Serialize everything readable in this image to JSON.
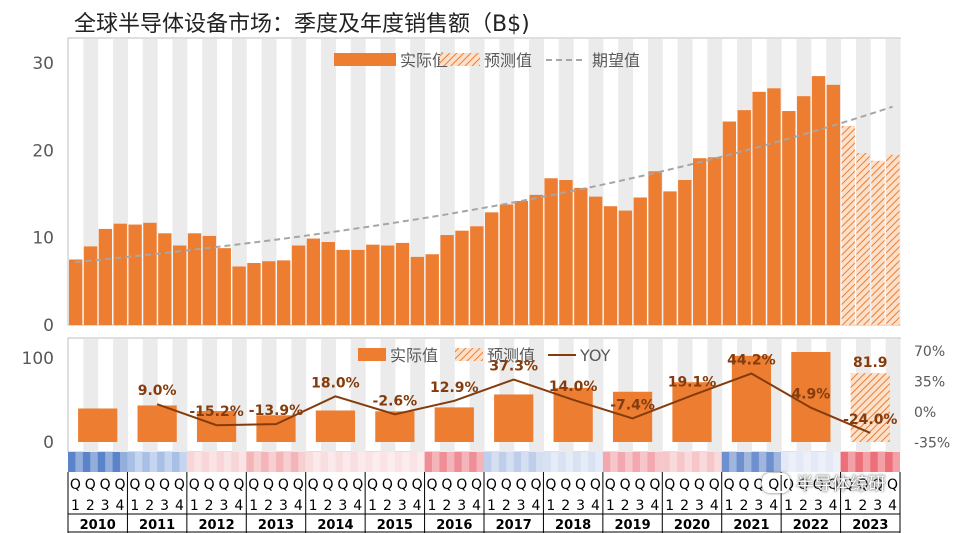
{
  "title": "全球半导体设备市场：季度及年度销售额（B$)",
  "watermark": "半导体综研",
  "colors": {
    "actual": "#ED7D31",
    "forecast": "#F4B183",
    "trend": "#A6A6A6",
    "yoy": "#843C0C",
    "band": "#EBEBEB"
  },
  "chart_data": [
    {
      "type": "bar",
      "name": "quarterly",
      "ylim": [
        0,
        30
      ],
      "yticks": [
        0,
        10,
        20,
        30
      ],
      "legend": [
        "实际值",
        "预测值",
        "期望值"
      ],
      "legend_position": "top-center",
      "quarters": [
        "Q1",
        "Q2",
        "Q3",
        "Q4"
      ],
      "years": [
        "2010",
        "2011",
        "2012",
        "2013",
        "2014",
        "2015",
        "2016",
        "2017",
        "2018",
        "2019",
        "2020",
        "2021",
        "2022",
        "2023"
      ],
      "actual": [
        7.5,
        9.0,
        11.0,
        11.6,
        11.5,
        11.7,
        10.5,
        9.1,
        10.5,
        10.2,
        8.8,
        6.7,
        7.1,
        7.3,
        7.4,
        9.1,
        9.9,
        9.5,
        8.6,
        8.6,
        9.2,
        9.1,
        9.4,
        7.8,
        8.1,
        10.3,
        10.8,
        11.3,
        12.9,
        13.8,
        14.2,
        14.9,
        16.8,
        16.6,
        15.7,
        14.7,
        13.6,
        13.1,
        14.6,
        17.6,
        15.3,
        16.6,
        19.1,
        19.2,
        23.3,
        24.6,
        26.7,
        27.1,
        24.5,
        26.2,
        28.5,
        27.5
      ],
      "forecast": [
        22.8,
        19.7,
        18.8,
        19.5
      ],
      "trend_start": 7.2,
      "trend_end": 25.0
    },
    {
      "type": "bar+line",
      "name": "annual",
      "ylim": [
        -30,
        135
      ],
      "yticks_left": [
        0,
        100
      ],
      "yticks_right": [
        "70%",
        "35%",
        "0%",
        "-35%"
      ],
      "legend": [
        "实际值",
        "预测值",
        "YOY"
      ],
      "legend_position": "top-center",
      "years": [
        "2010",
        "2011",
        "2012",
        "2013",
        "2014",
        "2015",
        "2016",
        "2017",
        "2018",
        "2019",
        "2020",
        "2021",
        "2022",
        "2023"
      ],
      "actual": [
        39.9,
        43.5,
        36.9,
        31.8,
        37.5,
        36.5,
        41.2,
        56.6,
        64.5,
        59.8,
        71.2,
        102.6,
        107.6,
        null
      ],
      "forecast": [
        null,
        null,
        null,
        null,
        null,
        null,
        null,
        null,
        null,
        null,
        null,
        null,
        null,
        81.9
      ],
      "yoy": [
        null,
        9.0,
        -15.2,
        -13.9,
        18.0,
        -2.6,
        12.9,
        37.3,
        14.0,
        -7.4,
        19.1,
        44.2,
        4.9,
        -24.0
      ],
      "yoy_labels": [
        "",
        "9.0%",
        "-15.2%",
        "-13.9%",
        "18.0%",
        "-2.6%",
        "12.9%",
        "37.3%",
        "14.0%",
        "-7.4%",
        "19.1%",
        "44.2%",
        "4.9%",
        "-24.0%"
      ],
      "bar_label_2023": "81.9",
      "heat_colors": [
        "#5B83C9",
        "#A8BFE6",
        "#F8D5D7",
        "#F4B5B9",
        "#F9DEE0",
        "#F9E3E4",
        "#EF8E96",
        "#BFCEEB",
        "#D9E2F3",
        "#F2A8AE",
        "#F6C6C9",
        "#6E90CE",
        "#E3E9F6",
        "#EC6F79"
      ]
    }
  ]
}
